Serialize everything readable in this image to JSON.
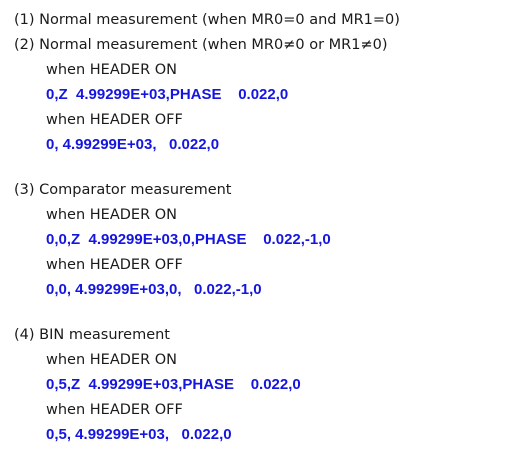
{
  "sections": [
    {
      "heading": "(1) Normal measurement (when MR0=0 and MR1=0)"
    },
    {
      "heading": "(2) Normal measurement (when MR0≠0 or MR1≠0)",
      "header_on_label": "when HEADER ON",
      "header_on_value": "0,Z  4.99299E+03,PHASE    0.022,0",
      "header_off_label": "when HEADER OFF",
      "header_off_value": "0, 4.99299E+03,   0.022,0"
    },
    {
      "heading": "(3) Comparator measurement",
      "header_on_label": "when HEADER ON",
      "header_on_value": "0,0,Z  4.99299E+03,0,PHASE    0.022,-1,0",
      "header_off_label": "when HEADER OFF",
      "header_off_value": "0,0, 4.99299E+03,0,   0.022,-1,0"
    },
    {
      "heading": "(4) BIN measurement",
      "header_on_label": "when HEADER ON",
      "header_on_value": "0,5,Z  4.99299E+03,PHASE    0.022,0",
      "header_off_label": "when HEADER OFF",
      "header_off_value": "0,5, 4.99299E+03,   0.022,0"
    }
  ]
}
